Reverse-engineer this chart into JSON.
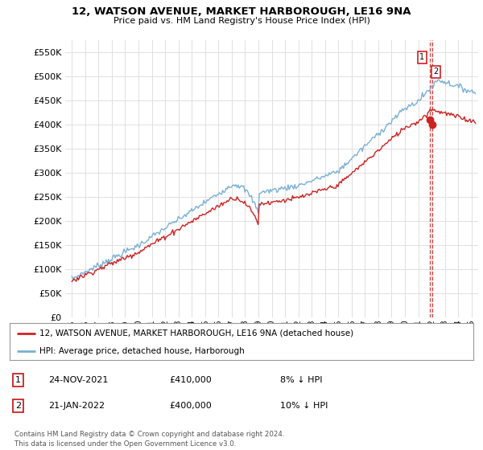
{
  "title_line1": "12, WATSON AVENUE, MARKET HARBOROUGH, LE16 9NA",
  "title_line2": "Price paid vs. HM Land Registry's House Price Index (HPI)",
  "ylabel_ticks": [
    "£0",
    "£50K",
    "£100K",
    "£150K",
    "£200K",
    "£250K",
    "£300K",
    "£350K",
    "£400K",
    "£450K",
    "£500K",
    "£550K"
  ],
  "ytick_values": [
    0,
    50000,
    100000,
    150000,
    200000,
    250000,
    300000,
    350000,
    400000,
    450000,
    500000,
    550000
  ],
  "ylim": [
    0,
    575000
  ],
  "xlim_start": 1994.5,
  "xlim_end": 2025.5,
  "hpi_color": "#7ab0d4",
  "price_color": "#cc2222",
  "legend_label_price": "12, WATSON AVENUE, MARKET HARBOROUGH, LE16 9NA (detached house)",
  "legend_label_hpi": "HPI: Average price, detached house, Harborough",
  "annotation1_num": "1",
  "annotation1_date": "24-NOV-2021",
  "annotation1_price": "£410,000",
  "annotation1_hpi": "8% ↓ HPI",
  "annotation2_num": "2",
  "annotation2_date": "21-JAN-2022",
  "annotation2_price": "£400,000",
  "annotation2_hpi": "10% ↓ HPI",
  "footnote": "Contains HM Land Registry data © Crown copyright and database right 2024.\nThis data is licensed under the Open Government Licence v3.0.",
  "sale1_x": 2021.9,
  "sale1_y": 410000,
  "sale2_x": 2022.07,
  "sale2_y": 400000,
  "background_color": "#ffffff",
  "grid_color": "#e0e0e0"
}
